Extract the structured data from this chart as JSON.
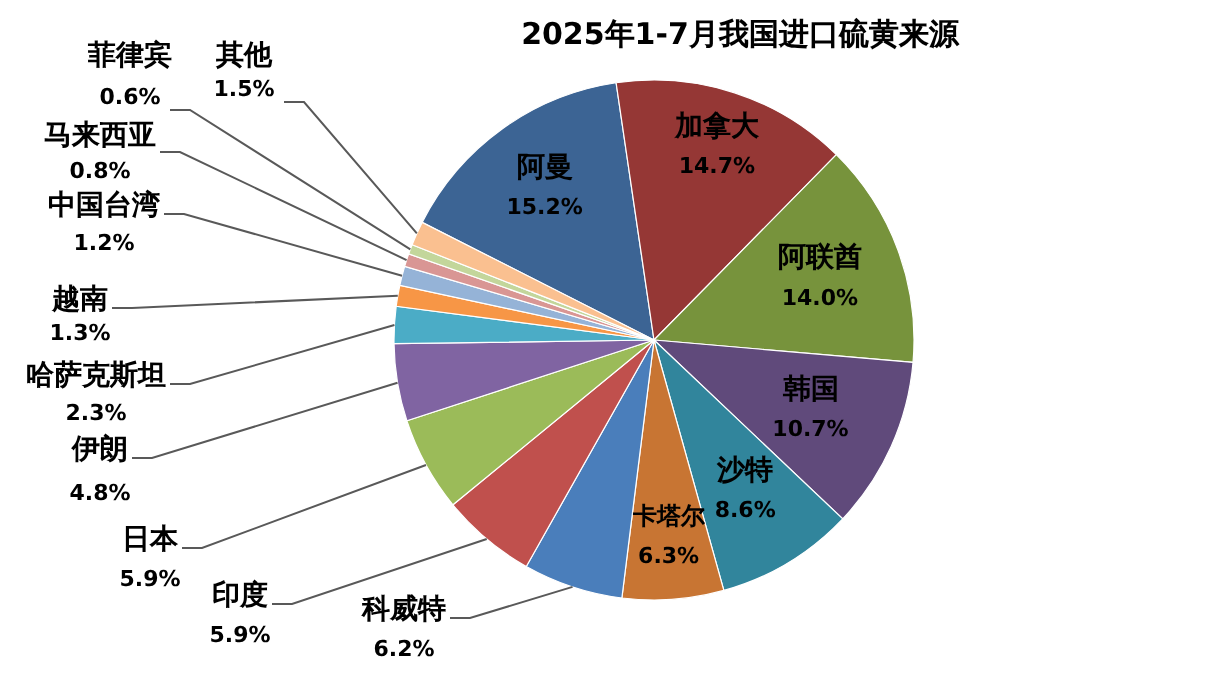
{
  "chart_data": {
    "type": "pie",
    "title": "2025年1-7月我国进口硫黄来源",
    "categories": [
      "阿曼",
      "加拿大",
      "阿联酋",
      "韩国",
      "沙特",
      "卡塔尔",
      "科威特",
      "印度",
      "日本",
      "伊朗",
      "哈萨克斯坦",
      "越南",
      "中国台湾",
      "马来西亚",
      "菲律宾",
      "其他"
    ],
    "values": [
      15.2,
      14.7,
      14.0,
      10.7,
      8.6,
      6.3,
      6.2,
      5.9,
      5.9,
      4.8,
      2.3,
      1.3,
      1.2,
      0.8,
      0.6,
      1.5
    ],
    "colors": [
      "#3c6494",
      "#953735",
      "#77933c",
      "#604a7b",
      "#31859c",
      "#c87533",
      "#4a7ebb",
      "#c0504d",
      "#9bbb59",
      "#8064a2",
      "#4bacc6",
      "#f79646",
      "#95b3d7",
      "#d99694",
      "#c3d69b",
      "#fac090"
    ],
    "value_labels": [
      "15.2%",
      "14.7%",
      "14.0%",
      "10.7%",
      "8.6%",
      "6.3%",
      "6.2%",
      "5.9%",
      "5.9%",
      "4.8%",
      "2.3%",
      "1.3%",
      "1.2%",
      "0.8%",
      "0.6%",
      "1.5%"
    ],
    "data_labels": true,
    "legend": false
  }
}
